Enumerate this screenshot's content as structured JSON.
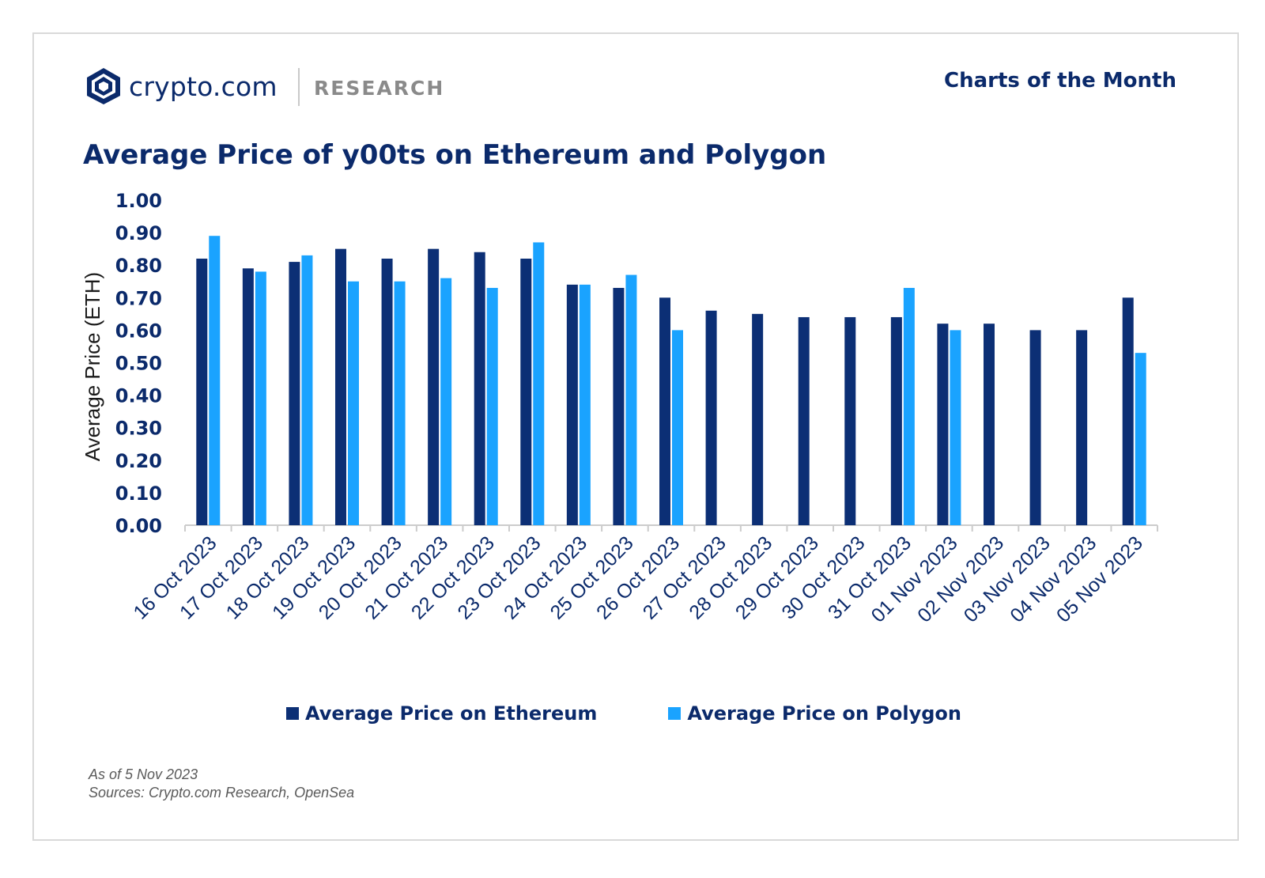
{
  "brand": {
    "name": "crypto.com",
    "section": "RESEARCH",
    "series_label": "Charts of the Month"
  },
  "colors": {
    "navy": "#0b2a6b",
    "ethereum": "#0c2f75",
    "polygon": "#1aa3ff",
    "axis": "#cccccc"
  },
  "chart_data": {
    "type": "bar",
    "title": "Average Price of y00ts on Ethereum and Polygon",
    "xlabel": "",
    "ylabel": "Average Price (ETH)",
    "ylim": [
      0,
      1.0
    ],
    "yticks": [
      "0.00",
      "0.10",
      "0.20",
      "0.30",
      "0.40",
      "0.50",
      "0.60",
      "0.70",
      "0.80",
      "0.90",
      "1.00"
    ],
    "grid": false,
    "legend_position": "bottom",
    "categories": [
      "16 Oct 2023",
      "17 Oct 2023",
      "18 Oct 2023",
      "19 Oct 2023",
      "20 Oct 2023",
      "21 Oct 2023",
      "22 Oct 2023",
      "23 Oct 2023",
      "24 Oct 2023",
      "25 Oct 2023",
      "26 Oct 2023",
      "27 Oct 2023",
      "28 Oct 2023",
      "29 Oct 2023",
      "30 Oct 2023",
      "31 Oct 2023",
      "01 Nov 2023",
      "02 Nov 2023",
      "03 Nov 2023",
      "04 Nov 2023",
      "05 Nov 2023"
    ],
    "series": [
      {
        "name": "Average Price on Ethereum",
        "color": "#0c2f75",
        "values": [
          0.82,
          0.79,
          0.81,
          0.85,
          0.82,
          0.85,
          0.84,
          0.82,
          0.74,
          0.73,
          0.7,
          0.66,
          0.65,
          0.64,
          0.64,
          0.64,
          0.62,
          0.62,
          0.6,
          0.6,
          0.7
        ]
      },
      {
        "name": "Average Price on Polygon",
        "color": "#1aa3ff",
        "values": [
          0.89,
          0.78,
          0.83,
          0.75,
          0.75,
          0.76,
          0.73,
          0.87,
          0.74,
          0.77,
          0.6,
          null,
          null,
          null,
          null,
          0.73,
          0.6,
          null,
          null,
          null,
          0.53
        ]
      }
    ]
  },
  "notes": {
    "as_of": "As of 5 Nov 2023",
    "sources": "Sources: Crypto.com Research, OpenSea"
  }
}
